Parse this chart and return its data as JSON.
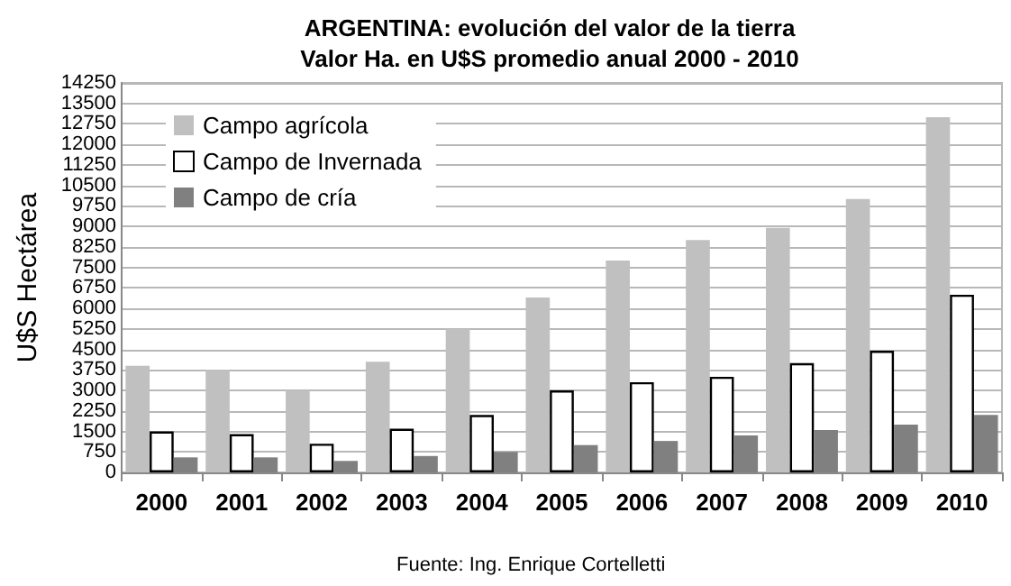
{
  "chart_data": {
    "type": "bar",
    "title": "ARGENTINA: evolución del valor de la tierra",
    "subtitle": "Valor Ha. en U$S promedio anual 2000 - 2010",
    "ylabel": "U$S Hectárea",
    "categories": [
      "2000",
      "2001",
      "2002",
      "2003",
      "2004",
      "2005",
      "2006",
      "2007",
      "2008",
      "2009",
      "2010"
    ],
    "series": [
      {
        "name": "Campo agrícola",
        "color": "#c0c0c0",
        "values": [
          3900,
          3750,
          3000,
          4050,
          5250,
          6400,
          7750,
          8500,
          8950,
          10000,
          13000
        ]
      },
      {
        "name": "Campo de Invernada",
        "color": "#ffffff",
        "values": [
          1500,
          1400,
          1050,
          1600,
          2100,
          3000,
          3300,
          3500,
          4000,
          4450,
          6500
        ]
      },
      {
        "name": "Campo de cría",
        "color": "#808080",
        "values": [
          550,
          550,
          420,
          600,
          750,
          1000,
          1150,
          1350,
          1550,
          1750,
          2100
        ]
      }
    ],
    "ylim": [
      0,
      14250
    ],
    "yticks": [
      0,
      750,
      1500,
      2250,
      3000,
      3750,
      4500,
      5250,
      6000,
      6750,
      7500,
      8250,
      9000,
      9750,
      10500,
      11250,
      12000,
      12750,
      13500,
      14250
    ],
    "grid": "y",
    "legend": "top left",
    "annotations": [
      "Fuente: Ing. Enrique Cortelletti"
    ]
  }
}
